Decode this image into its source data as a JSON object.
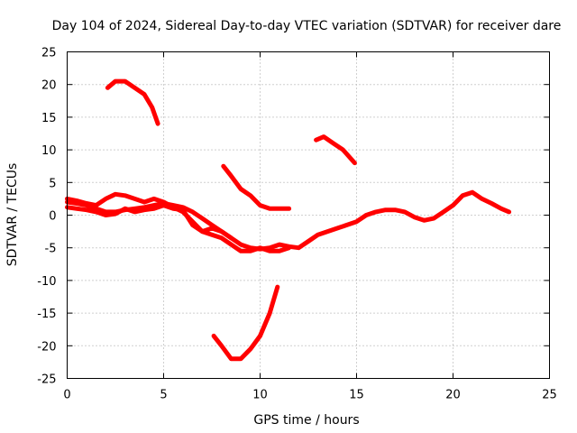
{
  "chart_data": {
    "type": "line",
    "title": "Day 104 of 2024, Sidereal Day-to-day VTEC variation (SDTVAR) for receiver dare",
    "xlabel": "GPS time / hours",
    "ylabel": "SDTVAR / TECUs",
    "xlim": [
      0,
      25
    ],
    "ylim": [
      -25,
      25
    ],
    "xticks": [
      0,
      5,
      10,
      15,
      20,
      25
    ],
    "yticks": [
      -25,
      -20,
      -15,
      -10,
      -5,
      0,
      5,
      10,
      15,
      20,
      25
    ],
    "grid": true,
    "series_color": "#ff0000",
    "series": [
      {
        "name": "main-1",
        "x": [
          0,
          0.5,
          1,
          1.5,
          2,
          2.5,
          3,
          3.5,
          4,
          4.5,
          5,
          5.5,
          6,
          6.5,
          7,
          7.5,
          8,
          8.5,
          9,
          9.5,
          10,
          10.5,
          11,
          11.5,
          12,
          12.5,
          13,
          13.5,
          14,
          14.5,
          15,
          15.5,
          16,
          16.5,
          17,
          17.5,
          18,
          18.5,
          19,
          19.5,
          20,
          20.5,
          21,
          21.5,
          22,
          22.5,
          22.9
        ],
        "y": [
          2,
          1.8,
          1.5,
          1.0,
          0.5,
          0.5,
          0.8,
          1.0,
          1.2,
          1.5,
          1.8,
          1.5,
          1.2,
          0.5,
          -0.5,
          -1.5,
          -2.5,
          -3.5,
          -4.5,
          -5.0,
          -5.2,
          -5.0,
          -4.5,
          -4.8,
          -5.0,
          -4.0,
          -3.0,
          -2.5,
          -2.0,
          -1.5,
          -1.0,
          0,
          0.5,
          0.8,
          0.8,
          0.5,
          -0.3,
          -0.8,
          -0.5,
          0.5,
          1.5,
          3.0,
          3.5,
          2.5,
          1.8,
          1.0,
          0.5
        ]
      },
      {
        "name": "main-2",
        "x": [
          0,
          0.5,
          1,
          1.5,
          2,
          2.5,
          3,
          3.5,
          4,
          4.5,
          5,
          5.5,
          6,
          6.5,
          7,
          7.5,
          8,
          8.5,
          9,
          9.5,
          10,
          10.5,
          11,
          11.5
        ],
        "y": [
          2.5,
          2.2,
          1.8,
          1.5,
          2.5,
          3.2,
          3.0,
          2.5,
          2.0,
          2.5,
          2.0,
          1.2,
          0.5,
          -1.0,
          -2.5,
          -3.0,
          -3.5,
          -4.5,
          -5.5,
          -5.5,
          -5.0,
          -5.5,
          -5.5,
          -5.0
        ]
      },
      {
        "name": "main-3",
        "x": [
          0,
          0.5,
          1,
          1.5,
          2,
          2.5,
          3,
          3.5,
          4,
          4.5,
          5,
          5.5,
          6,
          6.5,
          7,
          7.5,
          8,
          8.5
        ],
        "y": [
          1.2,
          1.0,
          0.8,
          0.5,
          0,
          0.2,
          1.0,
          0.5,
          0.8,
          1.0,
          1.5,
          1.0,
          0.8,
          -1.5,
          -2.5,
          -2.0,
          -2.5,
          -3.5
        ]
      },
      {
        "name": "arc-top-left",
        "x": [
          2.1,
          2.5,
          3.0,
          3.5,
          4.0,
          4.4,
          4.7
        ],
        "y": [
          19.5,
          20.5,
          20.5,
          19.5,
          18.5,
          16.5,
          14.0
        ]
      },
      {
        "name": "arc-top-mid",
        "x": [
          12.9,
          13.3,
          13.8,
          14.3,
          14.9
        ],
        "y": [
          11.5,
          12.0,
          11.0,
          10.0,
          8.0
        ]
      },
      {
        "name": "arc-center",
        "x": [
          8.1,
          8.5,
          9.0,
          9.5,
          10.0,
          10.5,
          11.0,
          11.5
        ],
        "y": [
          7.5,
          6.0,
          4.0,
          3.0,
          1.5,
          1.0,
          1.0,
          1.0
        ]
      },
      {
        "name": "arc-bottom",
        "x": [
          7.6,
          8.0,
          8.5,
          9.0,
          9.5,
          10.0,
          10.5,
          10.9
        ],
        "y": [
          -18.5,
          -20.0,
          -22.0,
          -22.0,
          -20.5,
          -18.5,
          -15.0,
          -11.0
        ]
      }
    ]
  }
}
